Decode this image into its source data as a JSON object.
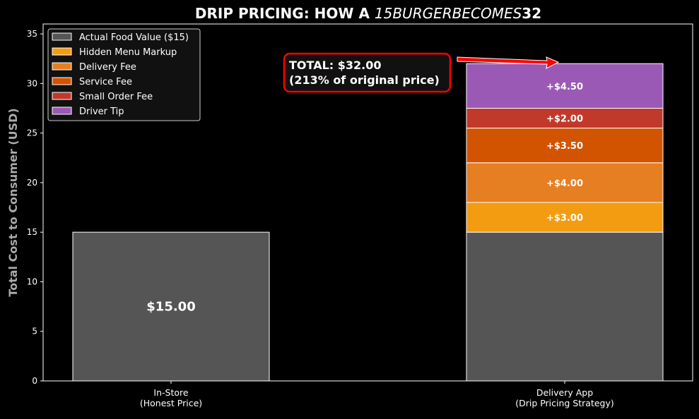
{
  "chart_data": {
    "type": "bar",
    "stacked": true,
    "title_parts": [
      {
        "text": "DRIP PRICING: HOW A ",
        "italic": false
      },
      {
        "text": "15BURGERBECOMES",
        "italic": true
      },
      {
        "text": "32",
        "italic": false
      }
    ],
    "xlabel": "",
    "ylabel": "Total Cost to Consumer (USD)",
    "ylim": [
      0,
      36
    ],
    "yticks": [
      0,
      5,
      10,
      15,
      20,
      25,
      30,
      35
    ],
    "grid": false,
    "legend_position": "top-left",
    "categories": [
      "In-Store\n(Honest Price)",
      "Delivery App\n(Drip Pricing Strategy)"
    ],
    "category_lines": [
      [
        "In-Store",
        "(Honest Price)"
      ],
      [
        "Delivery App",
        "(Drip Pricing Strategy)"
      ]
    ],
    "series": [
      {
        "name": "Actual Food Value ($15)",
        "color": "#555555",
        "values": [
          15,
          15
        ],
        "labels": [
          "$15.00",
          ""
        ]
      },
      {
        "name": "Hidden Menu Markup",
        "color": "#f39c12",
        "values": [
          0,
          3.0
        ],
        "labels": [
          "",
          "+$3.00"
        ]
      },
      {
        "name": "Delivery Fee",
        "color": "#e67e22",
        "values": [
          0,
          4.0
        ],
        "labels": [
          "",
          "+$4.00"
        ]
      },
      {
        "name": "Service Fee",
        "color": "#d35400",
        "values": [
          0,
          3.5
        ],
        "labels": [
          "",
          "+$3.50"
        ]
      },
      {
        "name": "Small Order Fee",
        "color": "#c0392b",
        "values": [
          0,
          2.0
        ],
        "labels": [
          "",
          "+$2.00"
        ]
      },
      {
        "name": "Driver Tip",
        "color": "#9b59b6",
        "values": [
          0,
          4.5
        ],
        "labels": [
          "",
          "+$4.50"
        ]
      }
    ],
    "annotation": {
      "lines": [
        "TOTAL: $32.00",
        "(213% of original price)"
      ],
      "border_color": "#ff0000",
      "points_to": 32
    }
  }
}
